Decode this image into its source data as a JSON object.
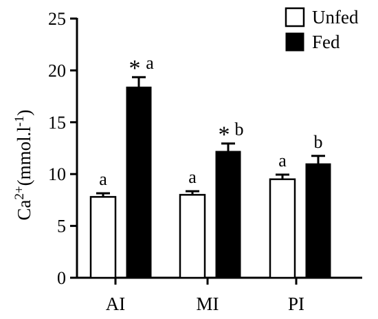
{
  "chart_data": {
    "type": "bar",
    "categories": [
      "AI",
      "MI",
      "PI"
    ],
    "series": [
      {
        "name": "Unfed",
        "values": [
          7.8,
          8.0,
          9.5
        ],
        "errors": [
          0.35,
          0.35,
          0.45
        ],
        "color": "#ffffff"
      },
      {
        "name": "Fed",
        "values": [
          18.4,
          12.2,
          11.0
        ],
        "errors": [
          0.95,
          0.75,
          0.75
        ],
        "color": "#000000"
      }
    ],
    "annotations": {
      "Unfed": [
        "a",
        "a",
        "a"
      ],
      "Fed": [
        "a",
        "b",
        "b"
      ],
      "Fed_star": [
        "*",
        "*",
        ""
      ]
    },
    "ylabel": "Ca",
    "ylabel_sup": "2+",
    "ylabel_units": "(mmol.l",
    "ylabel_units_sup": "-1",
    "ylabel_close": ")",
    "ylim": [
      0,
      25
    ],
    "yticks": [
      0,
      5,
      10,
      15,
      20,
      25
    ],
    "legend_position": "top-right",
    "grid": false
  }
}
